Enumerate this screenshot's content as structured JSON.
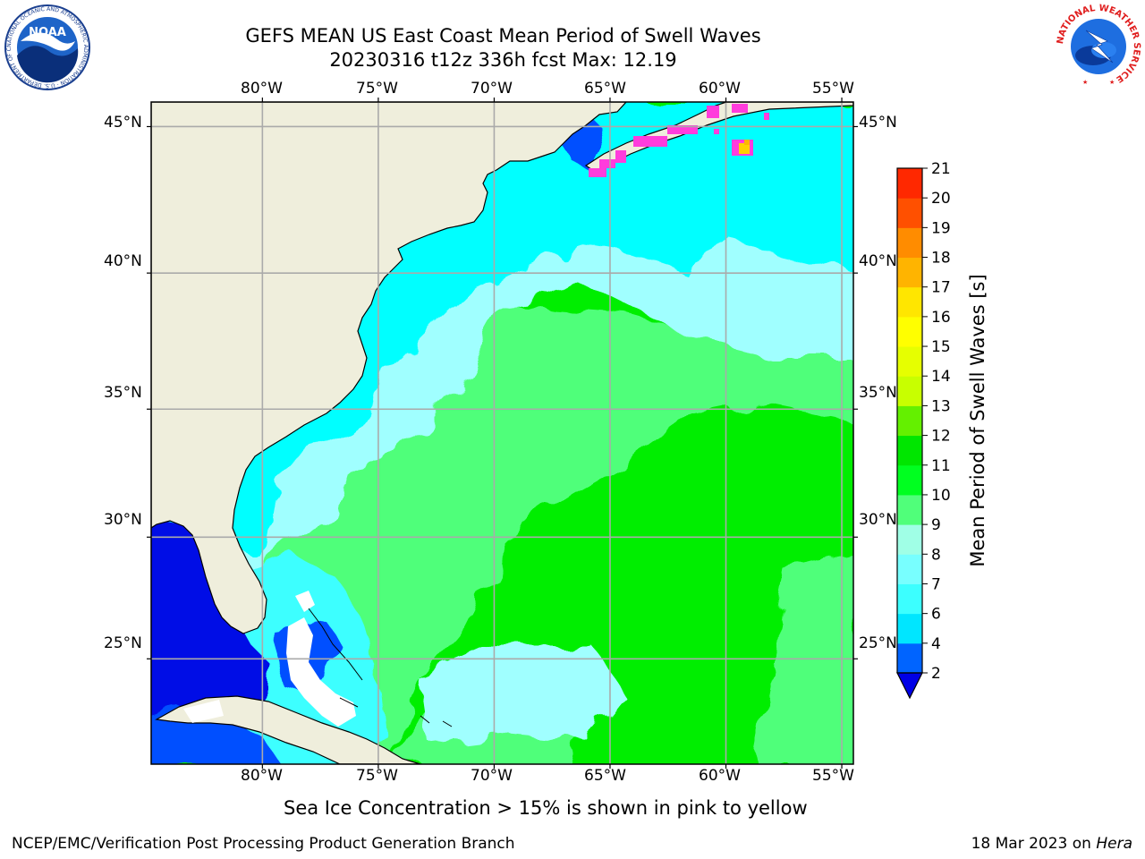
{
  "title": {
    "line1": "GEFS MEAN US East Coast Mean Period of Swell Waves",
    "line2": "20230316 t12z 336h fcst   Max: 12.19"
  },
  "logos": {
    "noaa_text": "NOAA",
    "noaa_ring": "NATIONAL OCEANIC AND ATMOSPHERIC ADMINISTRATION · U.S. DEPARTMENT OF COMMERCE",
    "nws_ring": "NATIONAL WEATHER SERVICE"
  },
  "map": {
    "lon_labels": [
      "80°W",
      "75°W",
      "70°W",
      "65°W",
      "60°W",
      "55°W"
    ],
    "lat_labels": [
      "45°N",
      "40°N",
      "35°N",
      "30°N",
      "25°N"
    ],
    "lon_values": [
      -80,
      -75,
      -70,
      -65,
      -60,
      -55
    ],
    "lat_values": [
      45,
      40,
      35,
      30,
      25
    ],
    "extent": {
      "lon_min": -84.8,
      "lon_max": -54.5,
      "lat_min": 20.5,
      "lat_max": 45.8
    }
  },
  "colorbar": {
    "label": "Mean Period of Swell Waves [s]",
    "ticks": [
      "2",
      "4",
      "6",
      "7",
      "8",
      "9",
      "10",
      "11",
      "12",
      "13",
      "14",
      "15",
      "16",
      "17",
      "18",
      "19",
      "20",
      "21"
    ],
    "colors": [
      "#0064ff",
      "#00e6ff",
      "#3cffff",
      "#78ffff",
      "#a0ffe6",
      "#50ff7a",
      "#00ff20",
      "#00e600",
      "#64f000",
      "#c8ff00",
      "#e6ff00",
      "#ffff00",
      "#ffe600",
      "#ffb400",
      "#ff8c00",
      "#ff5000",
      "#ff2800"
    ],
    "under_color": "#0000e6"
  },
  "palette": {
    "land": "#efeedc",
    "ocean_low": "#0050ff",
    "ocean_deep_blue": "#0010e6",
    "ocean_cyan": "#00ffff",
    "ocean_light_cyan": "#a0ffff",
    "ocean_light_green": "#50ff7a",
    "ocean_green": "#00ee00",
    "ice_pink": "#ff3cdc",
    "ice_yellow": "#ffd000",
    "grid": "#aaaaaa"
  },
  "note": "Sea Ice Concentration > 15% is shown in pink to yellow",
  "footer": {
    "left": "NCEP/EMC/Verification Post Processing Product Generation Branch",
    "right_prefix": "18 Mar 2023 on ",
    "right_machine": "Hera"
  }
}
